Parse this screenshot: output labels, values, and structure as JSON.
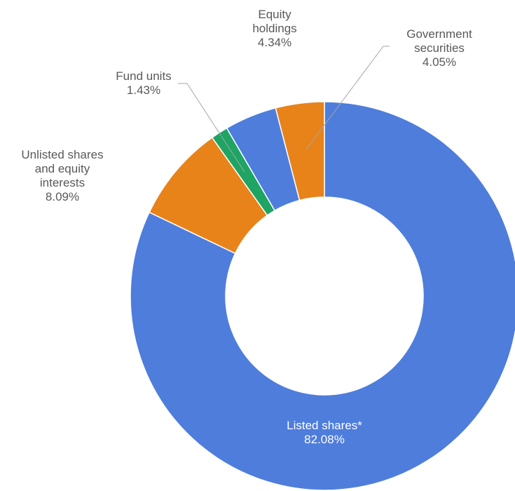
{
  "chart_data": {
    "type": "pie",
    "variant": "donut",
    "title": "",
    "slices": [
      {
        "label": [
          "Listed shares*"
        ],
        "value": 82.08,
        "value_label": "82.08%",
        "color": "#4e7ddc"
      },
      {
        "label": [
          "Unlisted shares",
          "and equity",
          "interests"
        ],
        "value": 8.09,
        "value_label": "8.09%",
        "color": "#e8831a"
      },
      {
        "label": [
          "Fund units"
        ],
        "value": 1.43,
        "value_label": "1.43%",
        "color": "#1fa463"
      },
      {
        "label": [
          "Equity",
          "holdings"
        ],
        "value": 4.34,
        "value_label": "4.34%",
        "color": "#4e7ddc"
      },
      {
        "label": [
          "Government",
          "securities"
        ],
        "value": 4.05,
        "value_label": "4.05%",
        "color": "#e8831a"
      }
    ]
  }
}
